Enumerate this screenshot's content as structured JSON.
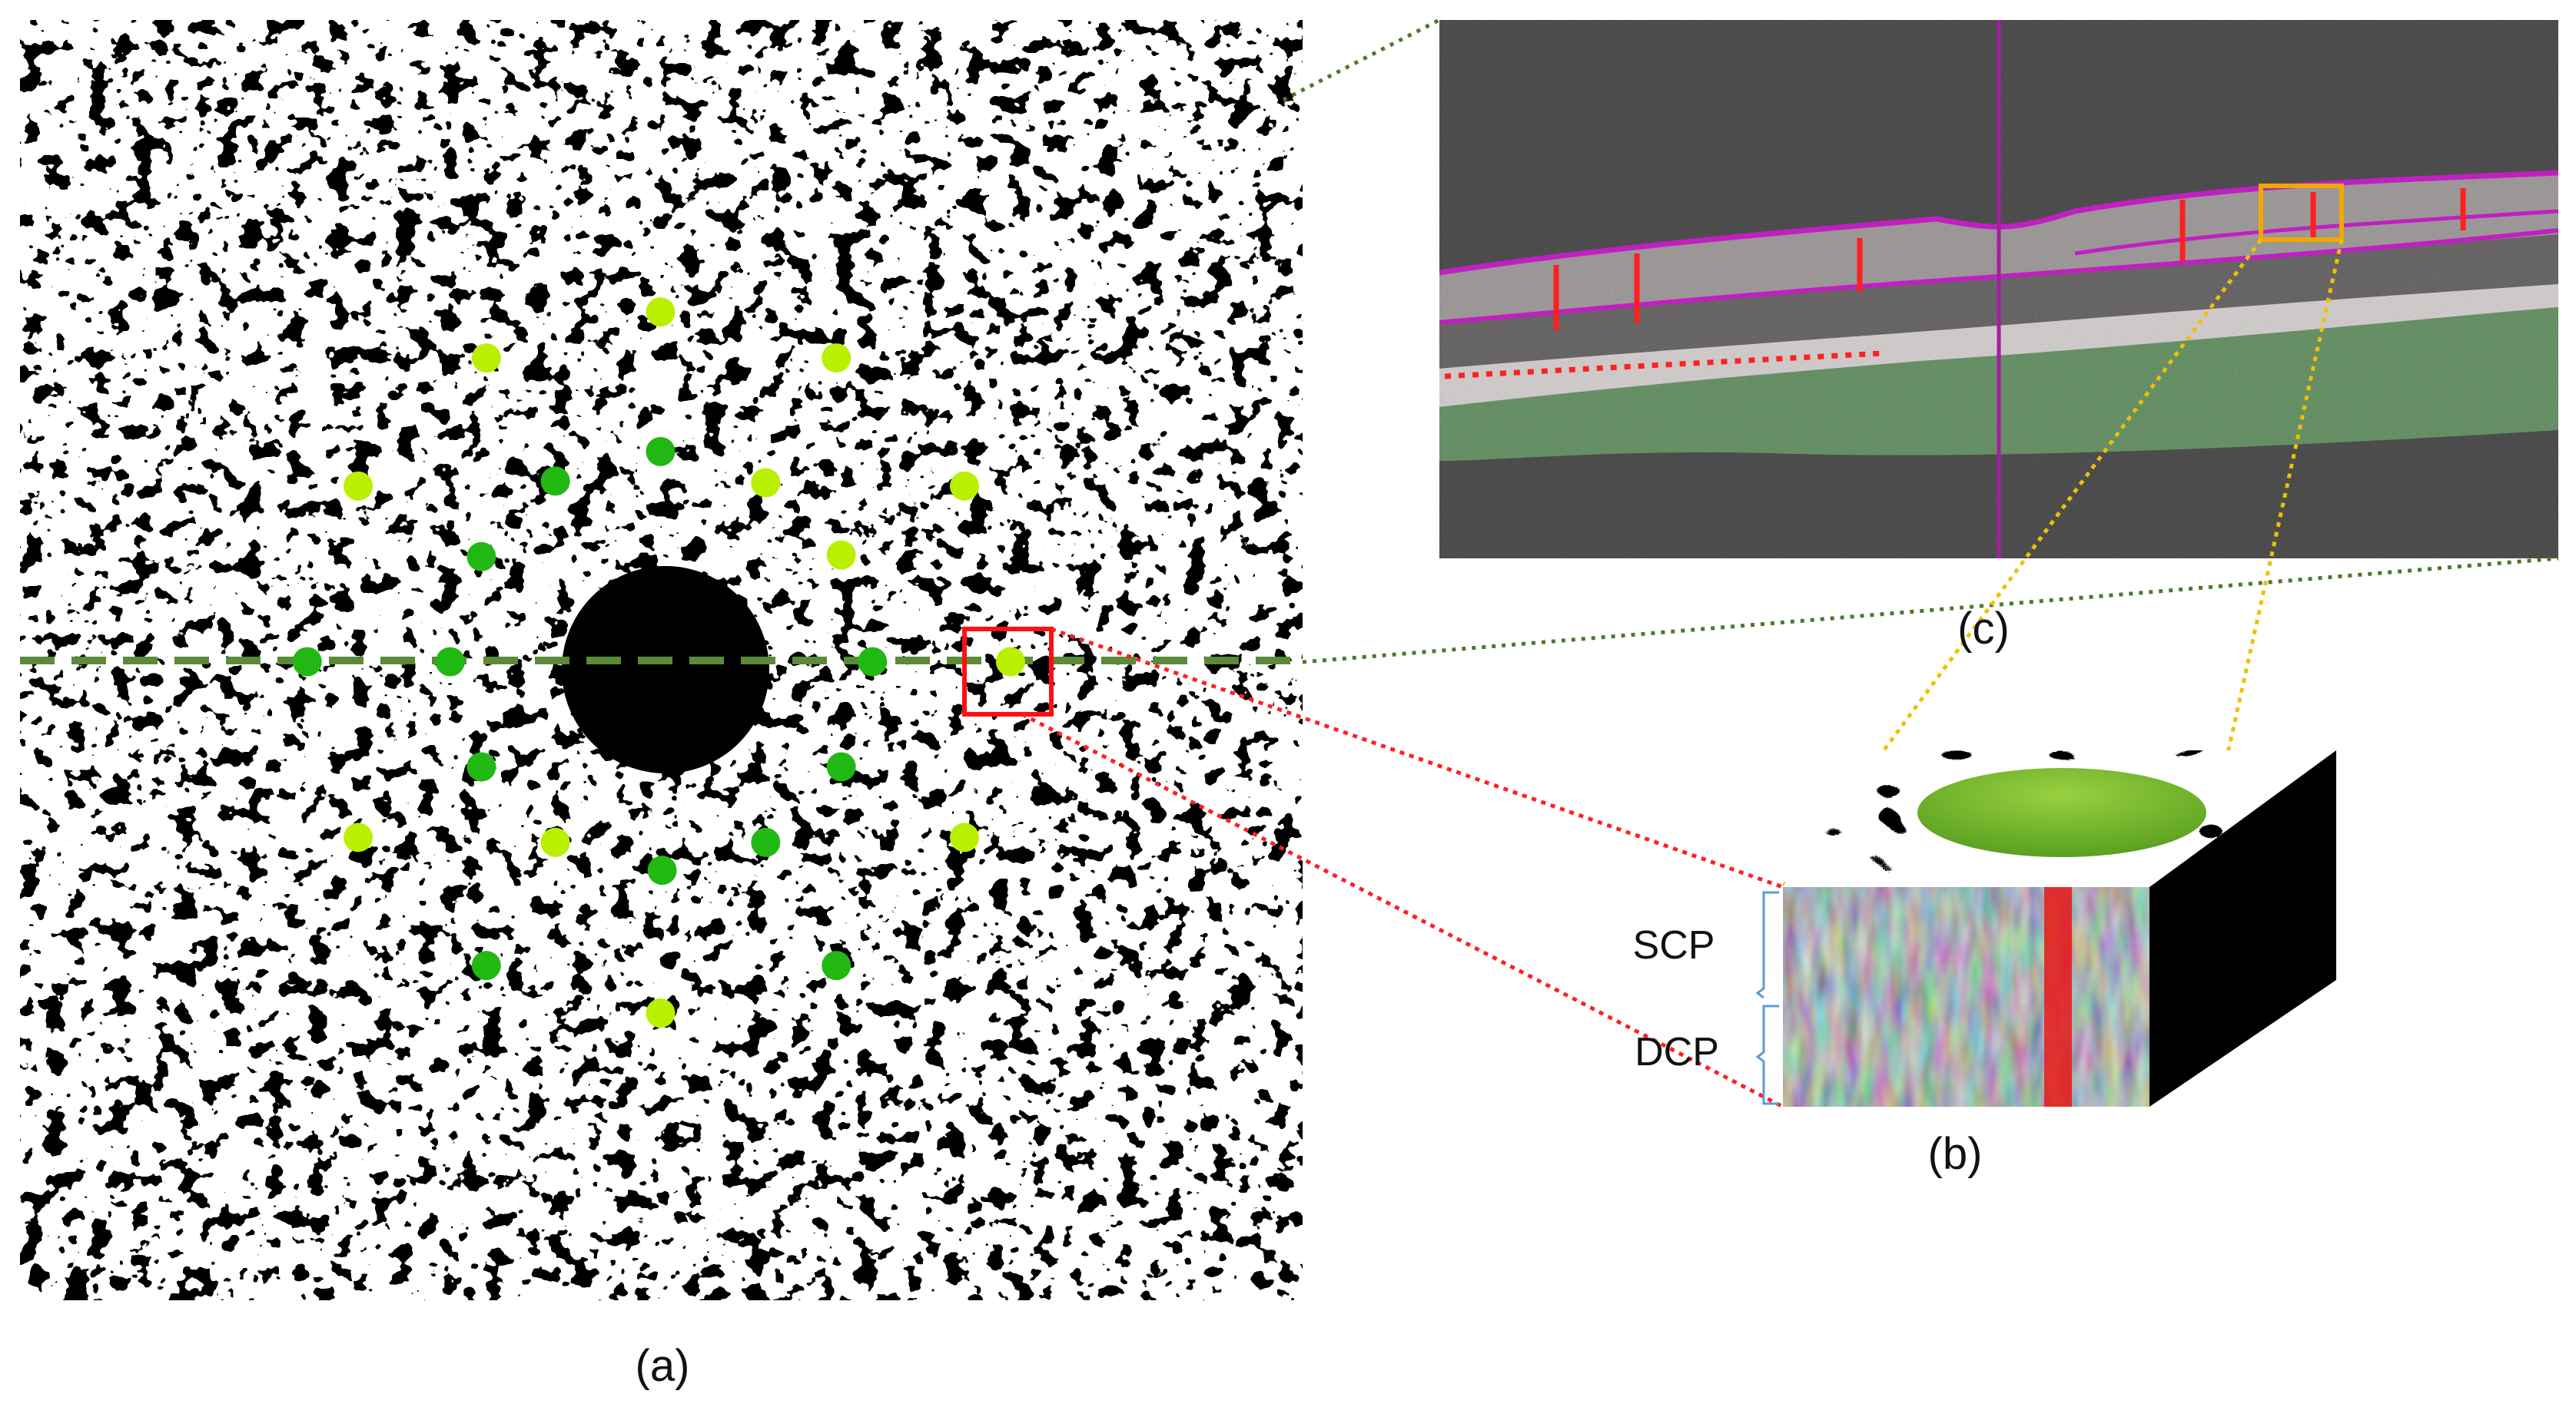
{
  "panels": {
    "a": {
      "label": "(a)"
    },
    "b": {
      "label": "(b)",
      "layer_labels": [
        "SCP",
        "DCP"
      ]
    },
    "c": {
      "label": "(c)"
    }
  },
  "colors": {
    "vessel": "#ffffff",
    "background": "#000000",
    "dot_light": "#b8f000",
    "dot_dark": "#22b814",
    "scan_line": "#5a8a3a",
    "roi_box": "#ff1010",
    "oct_boundary": "#c020c0",
    "oct_roi_box": "#f0a800",
    "connector_green": "#4a7a2a",
    "connector_red": "#ff2020",
    "connector_yellow": "#f0c000",
    "ellipse": "#7cc030",
    "bracket": "#5b9bd5"
  }
}
